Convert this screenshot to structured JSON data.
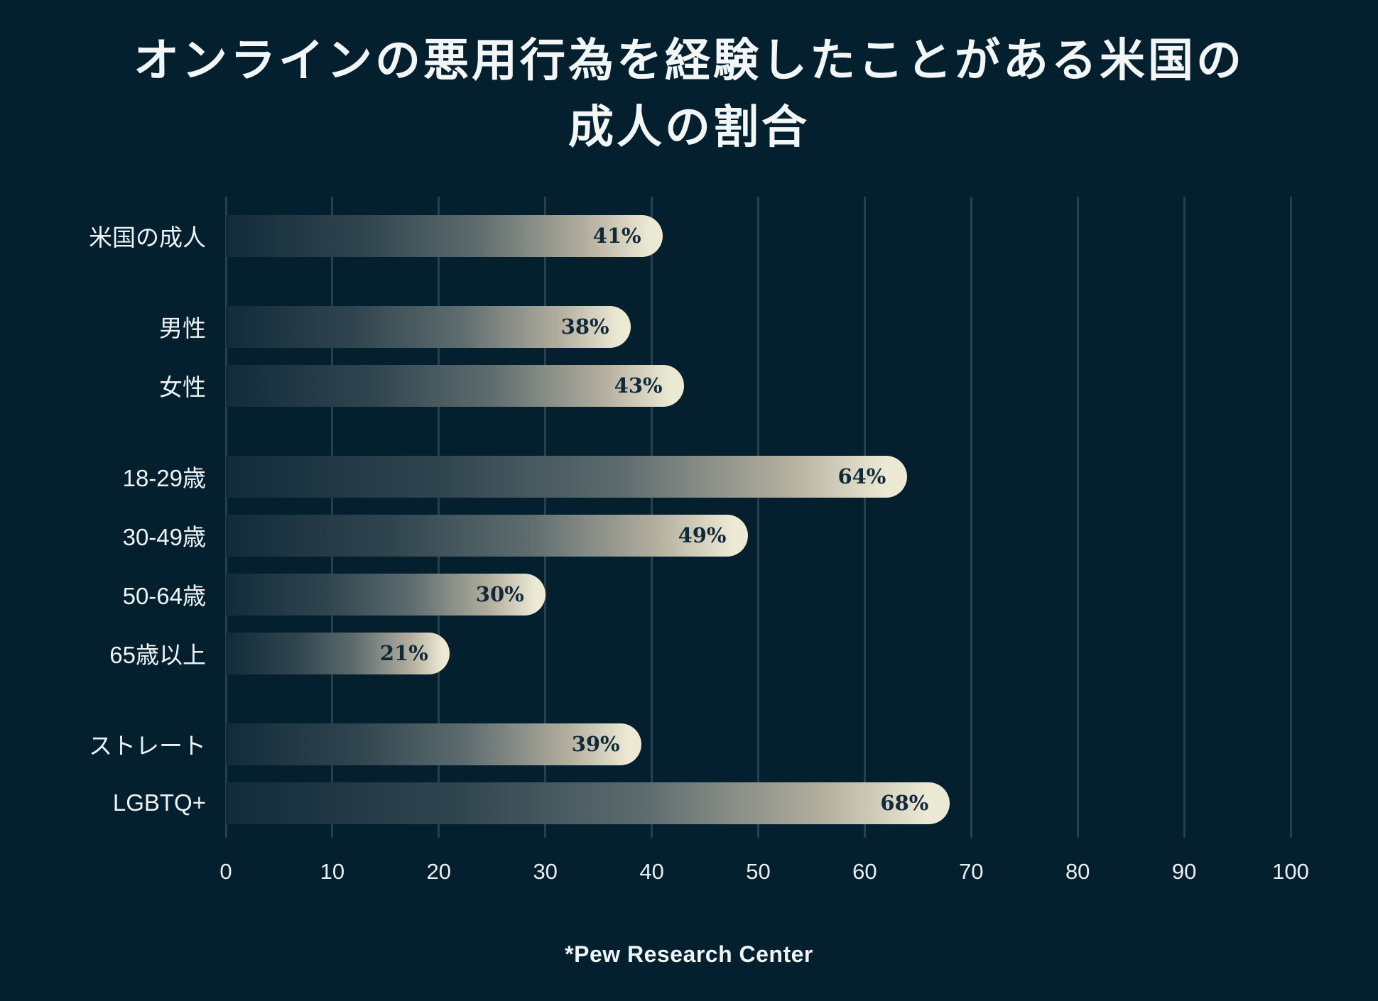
{
  "title_lines": [
    "オンラインの悪用行為を経験したことがある米国の",
    "成人の割合"
  ],
  "source_note": "*Pew Research Center",
  "colors": {
    "background": "#04202F",
    "gridline": "#25414F",
    "bar_gradient_start": "#122B3A",
    "bar_gradient_end": "#ECE9D4",
    "value_label": "#12293A",
    "text": "#F2F6F7"
  },
  "chart_data": {
    "type": "bar",
    "orientation": "horizontal",
    "title": "オンラインの悪用行為を経験したことがある米国の成人の割合",
    "xlabel": "",
    "ylabel": "",
    "xlim": [
      0,
      100
    ],
    "x_ticks": [
      0,
      10,
      20,
      30,
      40,
      50,
      60,
      70,
      80,
      90,
      100
    ],
    "grid": true,
    "legend": false,
    "source": "*Pew Research Center",
    "rows": [
      {
        "label": "米国の成人",
        "value": 41,
        "display": "41%",
        "group": 0
      },
      {
        "label": "男性",
        "value": 38,
        "display": "38%",
        "group": 1
      },
      {
        "label": "女性",
        "value": 43,
        "display": "43%",
        "group": 1
      },
      {
        "label": "18-29歳",
        "value": 64,
        "display": "64%",
        "group": 2
      },
      {
        "label": "30-49歳",
        "value": 49,
        "display": "49%",
        "group": 2
      },
      {
        "label": "50-64歳",
        "value": 30,
        "display": "30%",
        "group": 2
      },
      {
        "label": "65歳以上",
        "value": 21,
        "display": "21%",
        "group": 2
      },
      {
        "label": "ストレート",
        "value": 39,
        "display": "39%",
        "group": 3
      },
      {
        "label": "LGBTQ+",
        "value": 68,
        "display": "68%",
        "group": 3
      }
    ]
  }
}
